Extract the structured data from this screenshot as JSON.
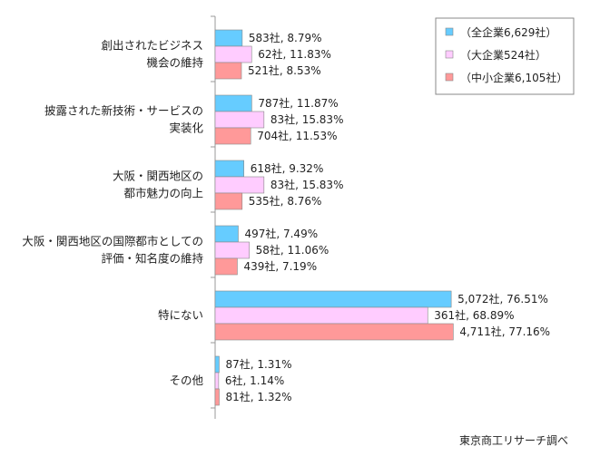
{
  "chart_data": {
    "type": "bar",
    "orientation": "horizontal",
    "categories": [
      [
        "創出されたビジネス",
        "機会の維持"
      ],
      [
        "披露された新技術・サービスの",
        "実装化"
      ],
      [
        "大阪・関西地区の",
        "都市魅力の向上"
      ],
      [
        "大阪・関西地区の国際都市としての",
        "評価・知名度の維持"
      ],
      [
        "特にない"
      ],
      [
        "その他"
      ]
    ],
    "series": [
      {
        "name": "（全企業6,629社）",
        "color": "#66ccff",
        "values": [
          8.79,
          11.87,
          9.32,
          7.49,
          76.51,
          1.31
        ],
        "labels": [
          "583社, 8.79%",
          "787社, 11.87%",
          "618社, 9.32%",
          "497社, 7.49%",
          "5,072社, 76.51%",
          "87社, 1.31%"
        ]
      },
      {
        "name": "（大企業524社）",
        "color": "#ffccff",
        "values": [
          11.83,
          15.83,
          15.83,
          11.06,
          68.89,
          1.14
        ],
        "labels": [
          "62社, 11.83%",
          "83社, 15.83%",
          "83社, 15.83%",
          "58社, 11.06%",
          "361社, 68.89%",
          "6社, 1.14%"
        ]
      },
      {
        "name": "（中小企業6,105社）",
        "color": "#ff9999",
        "values": [
          8.53,
          11.53,
          8.76,
          7.19,
          77.16,
          1.32
        ],
        "labels": [
          "521社, 8.53%",
          "704社, 11.53%",
          "535社, 8.76%",
          "439社, 7.19%",
          "4,711社, 77.16%",
          "81社, 1.32%"
        ]
      }
    ],
    "legend_position": "top-right",
    "xlim": [
      0,
      100
    ],
    "grid": false,
    "source": "東京商工リサーチ調べ"
  }
}
